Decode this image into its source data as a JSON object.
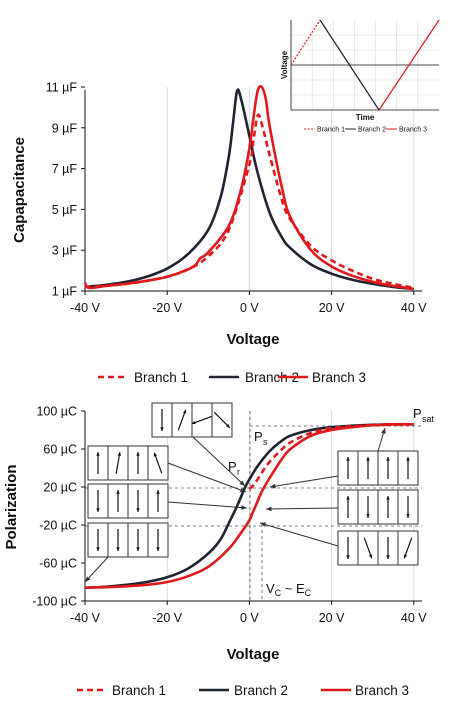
{
  "colors": {
    "branch1": "#e0191c",
    "branch2": "#1f2430",
    "branch3": "#e0191c",
    "grid": "#d9d9d9",
    "axis": "#111111"
  },
  "chart_data": [
    {
      "type": "line",
      "ylabel": "Capapacitance",
      "xlabel": "Voltage",
      "xlim": [
        -40,
        42
      ],
      "ylim": [
        1,
        11
      ],
      "xticks": [
        "-40 V",
        "-20 V",
        "0 V",
        "20 V",
        "40 V"
      ],
      "yticks": [
        "1 µF",
        "3 µF",
        "5 µF",
        "7 µF",
        "9 µF",
        "11 µF"
      ],
      "grid": "vertical",
      "series": [
        {
          "name": "Branch 1",
          "style": "dashed",
          "x": [
            -40,
            -35,
            -30,
            -25,
            -20,
            -15,
            -10,
            -5,
            0,
            1,
            2,
            3,
            5,
            8,
            10,
            15,
            20,
            25,
            30,
            35,
            40
          ],
          "y": [
            1.2,
            1.25,
            1.35,
            1.5,
            1.7,
            2.05,
            2.7,
            4.0,
            7.2,
            8.4,
            9.6,
            9.2,
            7.6,
            5.4,
            4.5,
            3.2,
            2.5,
            2.0,
            1.6,
            1.35,
            1.15
          ]
        },
        {
          "name": "Branch 2",
          "style": "solid",
          "x": [
            -40,
            -35,
            -30,
            -25,
            -20,
            -15,
            -10,
            -7,
            -5,
            -4,
            -3,
            -2,
            0,
            2,
            5,
            8,
            10,
            15,
            20,
            25,
            30,
            35,
            40
          ],
          "y": [
            1.2,
            1.3,
            1.45,
            1.7,
            2.1,
            2.8,
            4.0,
            5.6,
            7.6,
            9.2,
            10.8,
            10.4,
            8.6,
            6.8,
            4.8,
            3.6,
            3.1,
            2.3,
            1.85,
            1.55,
            1.35,
            1.2,
            1.1
          ]
        },
        {
          "name": "Branch 3",
          "style": "solid",
          "x": [
            -40,
            -39,
            -35,
            -30,
            -25,
            -20,
            -15,
            -13,
            -12,
            -10,
            -5,
            -2,
            0,
            1,
            2,
            3,
            4,
            5,
            8,
            10,
            15,
            20,
            25,
            30,
            35,
            40
          ],
          "y": [
            1.4,
            1.15,
            1.25,
            1.35,
            1.5,
            1.7,
            2.05,
            2.3,
            2.6,
            2.9,
            4.2,
            6.0,
            8.0,
            9.5,
            10.8,
            11.0,
            10.4,
            9.0,
            6.0,
            4.6,
            3.0,
            2.2,
            1.75,
            1.45,
            1.25,
            1.1
          ]
        }
      ]
    },
    {
      "type": "line",
      "ylabel": "Polarization",
      "xlabel": "Voltage",
      "xlim": [
        -40,
        42
      ],
      "ylim": [
        -100,
        100
      ],
      "xticks": [
        "-40 V",
        "-20 V",
        "0 V",
        "20 V",
        "40 V"
      ],
      "yticks": [
        "-100 µC",
        "-60 µC",
        "-20 µC",
        "20 µC",
        "60 µC",
        "100 µC"
      ],
      "grid": "vertical",
      "series": [
        {
          "name": "Branch 1",
          "style": "dashed",
          "x": [
            0,
            1,
            2,
            3,
            5,
            8,
            10,
            15,
            20,
            25,
            30,
            35,
            40
          ],
          "y": [
            18,
            22,
            28,
            35,
            47,
            60,
            67,
            77,
            82,
            84,
            85,
            85.5,
            86
          ]
        },
        {
          "name": "Branch 2",
          "style": "solid",
          "x": [
            -40,
            -35,
            -30,
            -25,
            -20,
            -15,
            -10,
            -7,
            -5,
            -3,
            -1,
            0,
            2,
            5,
            8,
            10,
            15,
            20,
            25,
            30,
            35,
            40
          ],
          "y": [
            -86,
            -85,
            -83,
            -80,
            -75,
            -66,
            -50,
            -35,
            -18,
            0,
            20,
            28,
            42,
            58,
            69,
            74,
            80,
            83,
            84.5,
            85.5,
            86,
            86
          ]
        },
        {
          "name": "Branch 3",
          "style": "solid",
          "x": [
            -40,
            -35,
            -30,
            -25,
            -20,
            -15,
            -10,
            -5,
            -2,
            0,
            1,
            2,
            3,
            5,
            8,
            10,
            15,
            20,
            25,
            30,
            35,
            40
          ],
          "y": [
            -86,
            -85.5,
            -84.5,
            -83,
            -80,
            -74,
            -64,
            -45,
            -28,
            -15,
            -5,
            5,
            15,
            30,
            50,
            60,
            74,
            80,
            83,
            85,
            86,
            86
          ]
        }
      ],
      "annotations": {
        "psat": "P",
        "psat_sub": "sat",
        "ps": "P",
        "ps_sub": "s",
        "pr": "P",
        "pr_sub": "r",
        "vc": "V",
        "vc_sub": "C",
        "vc_mid": " ~ E",
        "vc_sub2": "C"
      }
    }
  ],
  "inset": {
    "xlabel": "Time",
    "ylabel": "Voltage",
    "legend": [
      "Branch 1",
      "Branch 2",
      "Branch 3"
    ]
  },
  "legend1": [
    "Branch 1",
    "Branch 2",
    "Branch 3"
  ],
  "legend2": [
    "Branch 1",
    "Branch 2",
    "Branch 3"
  ]
}
